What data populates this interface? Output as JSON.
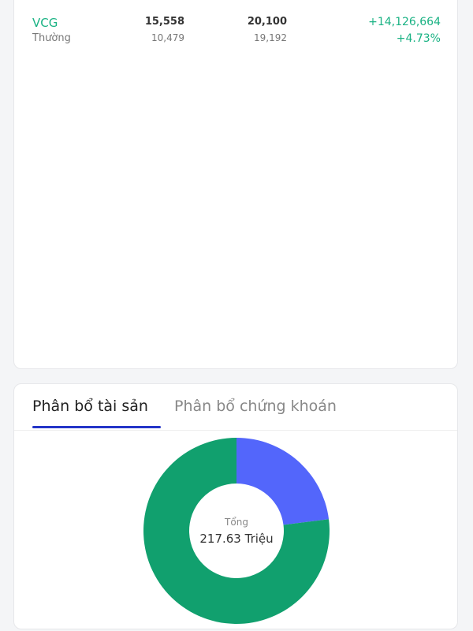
{
  "holdings": [
    {
      "symbol": "VCG",
      "type": "Thường",
      "col1_top": "15,558",
      "col1_bottom": "10,479",
      "col2_top": "20,100",
      "col2_bottom": "19,192",
      "pnl": "+14,126,664",
      "pnl_pct": "+4.73%"
    }
  ],
  "allocation": {
    "tabs": [
      {
        "label": "Phân bổ tài sản",
        "active": true
      },
      {
        "label": "Phân bổ chứng khoán",
        "active": false
      }
    ],
    "center_label": "Tổng",
    "center_value": "217.63 Triệu",
    "accent_color": "#2435c8"
  },
  "chart_data": {
    "type": "pie",
    "donut": true,
    "values": [
      23,
      77
    ],
    "colors": [
      "#5366fb",
      "#11a06e"
    ]
  }
}
